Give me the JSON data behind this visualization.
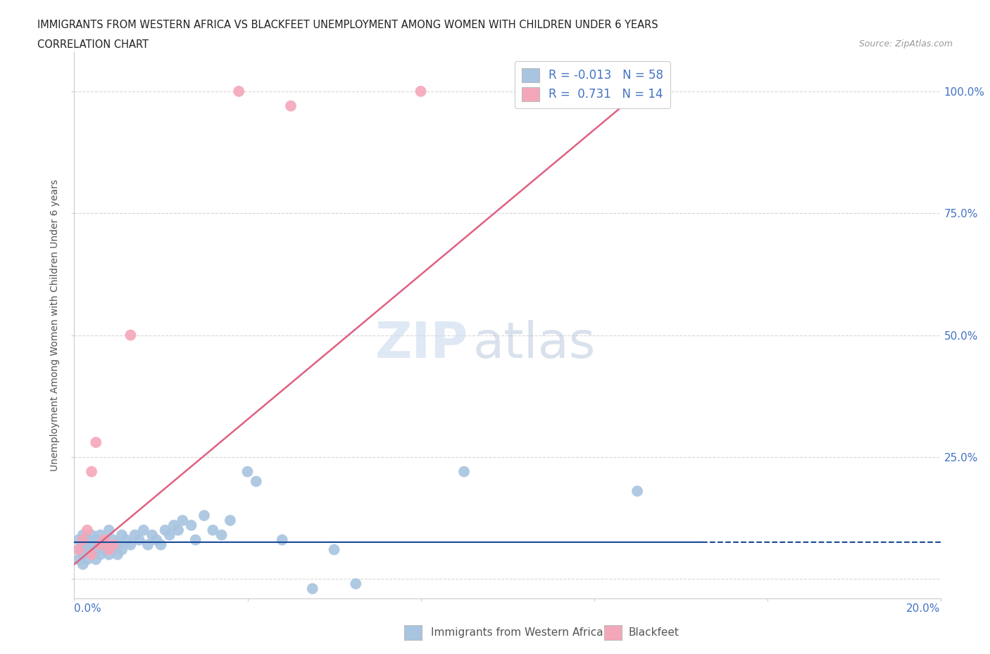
{
  "title_line1": "IMMIGRANTS FROM WESTERN AFRICA VS BLACKFEET UNEMPLOYMENT AMONG WOMEN WITH CHILDREN UNDER 6 YEARS",
  "title_line2": "CORRELATION CHART",
  "source": "Source: ZipAtlas.com",
  "ylabel": "Unemployment Among Women with Children Under 6 years",
  "xmin": 0.0,
  "xmax": 0.2,
  "ymin": -0.04,
  "ymax": 1.08,
  "yticks": [
    0.0,
    0.25,
    0.5,
    0.75,
    1.0
  ],
  "ytick_labels": [
    "",
    "25.0%",
    "50.0%",
    "75.0%",
    "100.0%"
  ],
  "blue_color": "#a8c4e0",
  "pink_color": "#f4a7b9",
  "trend_blue": "#1a4a99",
  "trend_pink": "#e06080",
  "R_blue": -0.013,
  "N_blue": 58,
  "R_pink": 0.731,
  "N_pink": 14,
  "label_blue": "Immigrants from Western Africa",
  "label_pink": "Blackfeet",
  "watermark_zip": "ZIP",
  "watermark_atlas": "atlas",
  "background_color": "#ffffff",
  "blue_scatter_x": [
    0.001,
    0.001,
    0.001,
    0.002,
    0.002,
    0.002,
    0.002,
    0.003,
    0.003,
    0.003,
    0.004,
    0.004,
    0.004,
    0.005,
    0.005,
    0.005,
    0.006,
    0.006,
    0.006,
    0.007,
    0.007,
    0.008,
    0.008,
    0.008,
    0.009,
    0.009,
    0.01,
    0.01,
    0.011,
    0.011,
    0.012,
    0.013,
    0.014,
    0.015,
    0.016,
    0.017,
    0.018,
    0.019,
    0.02,
    0.021,
    0.022,
    0.023,
    0.024,
    0.025,
    0.027,
    0.028,
    0.03,
    0.032,
    0.034,
    0.036,
    0.04,
    0.042,
    0.048,
    0.055,
    0.06,
    0.065,
    0.09,
    0.13
  ],
  "blue_scatter_y": [
    0.04,
    0.06,
    0.08,
    0.03,
    0.05,
    0.07,
    0.09,
    0.04,
    0.06,
    0.08,
    0.05,
    0.07,
    0.09,
    0.04,
    0.06,
    0.08,
    0.05,
    0.07,
    0.09,
    0.06,
    0.08,
    0.05,
    0.07,
    0.1,
    0.06,
    0.08,
    0.05,
    0.07,
    0.06,
    0.09,
    0.08,
    0.07,
    0.09,
    0.08,
    0.1,
    0.07,
    0.09,
    0.08,
    0.07,
    0.1,
    0.09,
    0.11,
    0.1,
    0.12,
    0.11,
    0.08,
    0.13,
    0.1,
    0.09,
    0.12,
    0.22,
    0.2,
    0.08,
    -0.02,
    0.06,
    -0.01,
    0.22,
    0.18
  ],
  "pink_scatter_x": [
    0.001,
    0.002,
    0.003,
    0.004,
    0.004,
    0.005,
    0.006,
    0.007,
    0.008,
    0.009,
    0.013,
    0.038,
    0.05,
    0.08
  ],
  "pink_scatter_y": [
    0.06,
    0.08,
    0.1,
    0.05,
    0.22,
    0.28,
    0.07,
    0.08,
    0.06,
    0.07,
    0.5,
    1.0,
    0.97,
    1.0
  ],
  "pink_trend_x0": 0.0,
  "pink_trend_y0": 0.03,
  "pink_trend_x1": 0.132,
  "pink_trend_y1": 1.01,
  "blue_trend_y": 0.075,
  "blue_trend_dash_start": 0.145
}
